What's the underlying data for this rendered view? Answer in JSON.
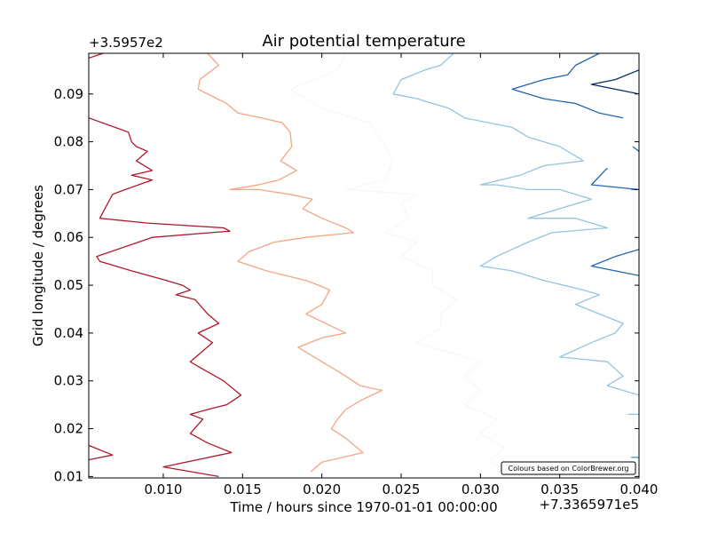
{
  "chart_data": {
    "type": "line",
    "title": "Air potential temperature",
    "xlabel": "Time / hours since 1970-01-01 00:00:00",
    "ylabel": "Grid longitude / degrees",
    "x_offset_label": "+7.3365971e5",
    "y_offset_label": "+3.5957e2",
    "credit": "Colours based on ColorBrewer.org",
    "xlim": [
      0.0053,
      0.04
    ],
    "ylim": [
      0.0097,
      0.0985
    ],
    "x_ticks": [
      {
        "value": 0.01,
        "label": "0.010"
      },
      {
        "value": 0.015,
        "label": "0.015"
      },
      {
        "value": 0.02,
        "label": "0.020"
      },
      {
        "value": 0.025,
        "label": "0.025"
      },
      {
        "value": 0.03,
        "label": "0.030"
      },
      {
        "value": 0.035,
        "label": "0.035"
      },
      {
        "value": 0.04,
        "label": "0.040"
      }
    ],
    "y_ticks": [
      {
        "value": 0.01,
        "label": "0.01"
      },
      {
        "value": 0.02,
        "label": "0.02"
      },
      {
        "value": 0.03,
        "label": "0.03"
      },
      {
        "value": 0.04,
        "label": "0.04"
      },
      {
        "value": 0.05,
        "label": "0.05"
      },
      {
        "value": 0.06,
        "label": "0.06"
      },
      {
        "value": 0.07,
        "label": "0.07"
      },
      {
        "value": 0.08,
        "label": "0.08"
      },
      {
        "value": 0.09,
        "label": "0.09"
      }
    ],
    "grid": false,
    "series": [
      {
        "color": "#b2182b",
        "points": [
          [
            0.0053,
            0.085
          ],
          [
            0.0078,
            0.082
          ],
          [
            0.008,
            0.08
          ],
          [
            0.0083,
            0.079
          ],
          [
            0.009,
            0.078
          ],
          [
            0.0083,
            0.076
          ],
          [
            0.0093,
            0.074
          ],
          [
            0.008,
            0.073
          ],
          [
            0.0093,
            0.072
          ],
          [
            0.0076,
            0.07
          ],
          [
            0.0068,
            0.069
          ],
          [
            0.006,
            0.064
          ],
          [
            0.009,
            0.063
          ],
          [
            0.0138,
            0.062
          ],
          [
            0.0142,
            0.0613
          ],
          [
            0.0093,
            0.06
          ],
          [
            0.0058,
            0.056
          ],
          [
            0.006,
            0.055
          ],
          [
            0.008,
            0.053
          ],
          [
            0.0102,
            0.051
          ],
          [
            0.0112,
            0.05
          ],
          [
            0.0117,
            0.049
          ],
          [
            0.0108,
            0.048
          ],
          [
            0.012,
            0.047
          ],
          [
            0.0128,
            0.044
          ],
          [
            0.0135,
            0.042
          ],
          [
            0.0122,
            0.04
          ],
          [
            0.0131,
            0.038
          ],
          [
            0.0117,
            0.034
          ],
          [
            0.0122,
            0.033
          ],
          [
            0.0138,
            0.03
          ],
          [
            0.0149,
            0.027
          ],
          [
            0.014,
            0.025
          ],
          [
            0.0128,
            0.024
          ],
          [
            0.0117,
            0.023
          ],
          [
            0.0125,
            0.022
          ],
          [
            0.0117,
            0.019
          ],
          [
            0.0128,
            0.017
          ],
          [
            0.0143,
            0.015
          ],
          [
            0.01,
            0.012
          ],
          [
            0.0135,
            0.01
          ]
        ]
      },
      {
        "color": "#b2182b",
        "points": [
          [
            0.0053,
            0.0135
          ],
          [
            0.0068,
            0.0145
          ],
          [
            0.0053,
            0.0165
          ]
        ]
      },
      {
        "color": "#b2182b",
        "points": [
          [
            0.0053,
            0.0975
          ],
          [
            0.0062,
            0.0985
          ]
        ]
      },
      {
        "color": "#f4a582",
        "points": [
          [
            0.0128,
            0.0985
          ],
          [
            0.0135,
            0.096
          ],
          [
            0.0127,
            0.094
          ],
          [
            0.0123,
            0.093
          ],
          [
            0.0122,
            0.091
          ],
          [
            0.0128,
            0.09
          ],
          [
            0.014,
            0.088
          ],
          [
            0.0147,
            0.086
          ],
          [
            0.0162,
            0.085
          ],
          [
            0.0175,
            0.084
          ],
          [
            0.018,
            0.082
          ],
          [
            0.0181,
            0.079
          ],
          [
            0.0174,
            0.076
          ],
          [
            0.0184,
            0.074
          ],
          [
            0.0173,
            0.072
          ],
          [
            0.016,
            0.071
          ],
          [
            0.0142,
            0.07
          ],
          [
            0.016,
            0.07
          ],
          [
            0.018,
            0.069
          ],
          [
            0.0194,
            0.068
          ],
          [
            0.0188,
            0.066
          ],
          [
            0.02,
            0.064
          ],
          [
            0.0215,
            0.062
          ],
          [
            0.022,
            0.061
          ],
          [
            0.019,
            0.06
          ],
          [
            0.017,
            0.059
          ],
          [
            0.0154,
            0.057
          ],
          [
            0.0147,
            0.055
          ],
          [
            0.0165,
            0.053
          ],
          [
            0.019,
            0.051
          ],
          [
            0.0198,
            0.05
          ],
          [
            0.0205,
            0.049
          ],
          [
            0.02,
            0.046
          ],
          [
            0.019,
            0.044
          ],
          [
            0.0215,
            0.04
          ],
          [
            0.02,
            0.039
          ],
          [
            0.0185,
            0.037
          ],
          [
            0.02,
            0.034
          ],
          [
            0.0215,
            0.031
          ],
          [
            0.0224,
            0.029
          ],
          [
            0.0238,
            0.028
          ],
          [
            0.0225,
            0.026
          ],
          [
            0.0215,
            0.024
          ],
          [
            0.021,
            0.022
          ],
          [
            0.0206,
            0.02
          ],
          [
            0.0215,
            0.018
          ],
          [
            0.0226,
            0.015
          ],
          [
            0.02,
            0.013
          ],
          [
            0.0193,
            0.011
          ]
        ]
      },
      {
        "color": "#f7f7f7",
        "points": [
          [
            0.0215,
            0.0985
          ],
          [
            0.021,
            0.095
          ],
          [
            0.0195,
            0.093
          ],
          [
            0.018,
            0.091
          ],
          [
            0.02,
            0.087
          ],
          [
            0.023,
            0.084
          ],
          [
            0.024,
            0.079
          ],
          [
            0.0245,
            0.076
          ],
          [
            0.024,
            0.072
          ],
          [
            0.0215,
            0.07
          ],
          [
            0.026,
            0.069
          ],
          [
            0.025,
            0.067
          ],
          [
            0.0255,
            0.064
          ],
          [
            0.024,
            0.061
          ],
          [
            0.026,
            0.059
          ],
          [
            0.025,
            0.056
          ],
          [
            0.027,
            0.053
          ],
          [
            0.027,
            0.05
          ],
          [
            0.0285,
            0.047
          ],
          [
            0.0275,
            0.044
          ],
          [
            0.0275,
            0.041
          ],
          [
            0.026,
            0.038
          ],
          [
            0.03,
            0.034
          ],
          [
            0.029,
            0.031
          ],
          [
            0.03,
            0.028
          ],
          [
            0.029,
            0.025
          ],
          [
            0.031,
            0.022
          ],
          [
            0.03,
            0.019
          ],
          [
            0.0315,
            0.016
          ],
          [
            0.0305,
            0.013
          ],
          [
            0.032,
            0.011
          ]
        ]
      },
      {
        "color": "#92c5de",
        "points": [
          [
            0.0283,
            0.0985
          ],
          [
            0.0275,
            0.096
          ],
          [
            0.0265,
            0.095
          ],
          [
            0.025,
            0.093
          ],
          [
            0.0245,
            0.09
          ],
          [
            0.026,
            0.089
          ],
          [
            0.028,
            0.087
          ],
          [
            0.029,
            0.085
          ],
          [
            0.0305,
            0.084
          ],
          [
            0.032,
            0.083
          ],
          [
            0.033,
            0.081
          ],
          [
            0.034,
            0.08
          ],
          [
            0.035,
            0.079
          ],
          [
            0.0365,
            0.076
          ],
          [
            0.034,
            0.075
          ],
          [
            0.0325,
            0.073
          ],
          [
            0.03,
            0.071
          ],
          [
            0.031,
            0.071
          ],
          [
            0.033,
            0.07
          ],
          [
            0.035,
            0.07
          ],
          [
            0.037,
            0.068
          ],
          [
            0.035,
            0.066
          ],
          [
            0.033,
            0.064
          ],
          [
            0.036,
            0.064
          ],
          [
            0.038,
            0.062
          ],
          [
            0.0345,
            0.061
          ],
          [
            0.033,
            0.059
          ],
          [
            0.031,
            0.056
          ],
          [
            0.03,
            0.054
          ],
          [
            0.032,
            0.053
          ],
          [
            0.034,
            0.051
          ],
          [
            0.0365,
            0.049
          ],
          [
            0.0375,
            0.048
          ],
          [
            0.036,
            0.046
          ],
          [
            0.0375,
            0.044
          ],
          [
            0.039,
            0.042
          ],
          [
            0.0385,
            0.04
          ],
          [
            0.037,
            0.038
          ],
          [
            0.035,
            0.035
          ],
          [
            0.038,
            0.034
          ],
          [
            0.039,
            0.031
          ],
          [
            0.038,
            0.029
          ],
          [
            0.04,
            0.027
          ]
        ]
      },
      {
        "color": "#92c5de",
        "points": [
          [
            0.0393,
            0.023
          ],
          [
            0.04,
            0.023
          ]
        ]
      },
      {
        "color": "#2166ac",
        "points": [
          [
            0.0375,
            0.0985
          ],
          [
            0.036,
            0.096
          ],
          [
            0.0355,
            0.094
          ],
          [
            0.034,
            0.093
          ],
          [
            0.033,
            0.092
          ],
          [
            0.032,
            0.091
          ],
          [
            0.034,
            0.089
          ],
          [
            0.036,
            0.088
          ],
          [
            0.0375,
            0.086
          ],
          [
            0.039,
            0.085
          ]
        ]
      },
      {
        "color": "#2166ac",
        "points": [
          [
            0.038,
            0.0745
          ],
          [
            0.037,
            0.071
          ],
          [
            0.04,
            0.07
          ],
          [
            0.0395,
            0.07
          ]
        ]
      },
      {
        "color": "#2166ac",
        "points": [
          [
            0.04,
            0.0575
          ],
          [
            0.0385,
            0.056
          ],
          [
            0.037,
            0.054
          ],
          [
            0.0385,
            0.053
          ],
          [
            0.04,
            0.052
          ]
        ]
      },
      {
        "color": "#2166ac",
        "points": [
          [
            0.0396,
            0.079
          ],
          [
            0.04,
            0.078
          ]
        ]
      },
      {
        "color": "#053061",
        "points": [
          [
            0.04,
            0.095
          ],
          [
            0.0385,
            0.093
          ],
          [
            0.037,
            0.092
          ],
          [
            0.0385,
            0.091
          ],
          [
            0.04,
            0.09
          ]
        ]
      },
      {
        "color": "#4393c3",
        "points": [
          [
            0.0395,
            0.014
          ],
          [
            0.04,
            0.014
          ]
        ]
      }
    ]
  }
}
